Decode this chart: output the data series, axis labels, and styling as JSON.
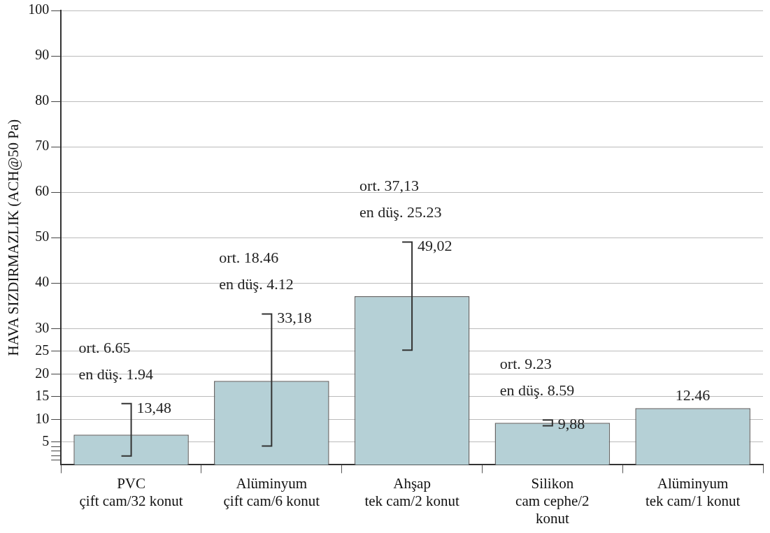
{
  "chart_data": {
    "type": "bar",
    "ylabel": "HAVA SIZDIRMAZLIK (ACH@50 Pa)",
    "categories": [
      "PVC\nçift cam/32 konut",
      "Alüminyum\nçift cam/6 konut",
      "Ahşap\ntek cam/2 konut",
      "Silikon\ncam cephe/2\nkonut",
      "Alüminyum\ntek cam/1 konut"
    ],
    "values": [
      6.65,
      18.46,
      37.13,
      9.23,
      12.46
    ],
    "errors": [
      [
        1.94,
        13.48
      ],
      [
        4.12,
        33.18
      ],
      [
        25.23,
        49.02
      ],
      [
        8.59,
        9.88
      ],
      null
    ],
    "value_labels": [
      null,
      null,
      null,
      null,
      "12.46"
    ],
    "color": "#b5d0d6",
    "ylim": [
      0,
      100
    ],
    "yticks": [
      {
        "value": 1,
        "label": null
      },
      {
        "value": 2,
        "label": null
      },
      {
        "value": 3,
        "label": null
      },
      {
        "value": 4,
        "label": null
      },
      5,
      10,
      15,
      20,
      25,
      30,
      40,
      50,
      60,
      70,
      80,
      90,
      100
    ],
    "grid": "y",
    "annotations": [
      "ort. 6.65",
      "en düş. 1.94",
      {
        "text": "13,48",
        "x": "PVC\nçift cam/32 konut",
        "y": 13.48
      },
      "ort. 18.46",
      "en düş. 4.12",
      {
        "text": "33,18",
        "x": "Alüminyum\nçift cam/6 konut",
        "y": 33.18
      },
      "ort. 37,13",
      "en düş. 25.23",
      {
        "text": "49,02",
        "x": "Ahşap\ntek cam/2 konut",
        "y": 49.02
      },
      "ort. 9.23",
      "en düş. 8.59",
      {
        "text": "9,88",
        "x": "Silikon\ncam cephe/2\nkonut",
        "y": 9.88
      }
    ]
  }
}
